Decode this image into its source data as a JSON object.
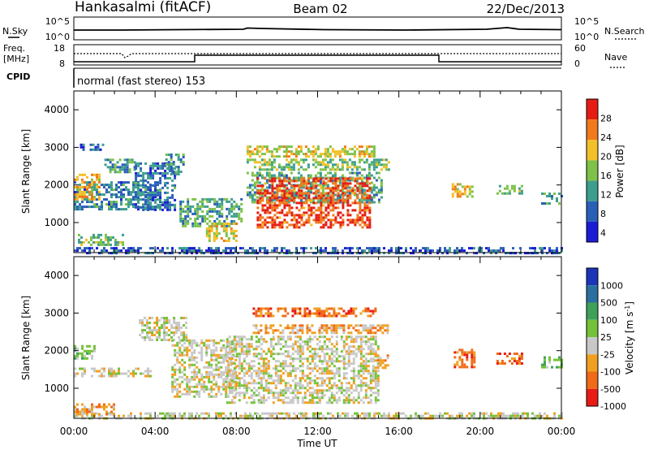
{
  "header": {
    "station": "Hankasalmi (fitACF)",
    "beam": "Beam 02",
    "date": "22/Dec/2013"
  },
  "top_panels": {
    "nsky_label": "N.Sky",
    "nsky_top_tick": "10^5",
    "nsky_bottom_tick": "10^0",
    "nsearch_label": "N.Search",
    "nsearch_top_tick": "10^5",
    "nsearch_bottom_tick": "10^0",
    "freq_label": "Freq.",
    "freq_unit": "[MHz]",
    "freq_top_tick": "18",
    "freq_bottom_tick": "8",
    "nave_label": "Nave",
    "nave_top_tick": "60",
    "nave_bottom_tick": "0",
    "cpid_label": "CPID",
    "cpid_text": "normal (fast stereo) 153"
  },
  "chart_data": [
    {
      "type": "heatmap",
      "title": "",
      "ylabel": "Slant Range [km]",
      "xlabel": "",
      "ylim": [
        200,
        4500
      ],
      "xlim": [
        0,
        24
      ],
      "yticks": [
        "4000",
        "3000",
        "2000",
        "1000"
      ],
      "colorbar": {
        "label": "Power [dB]",
        "ticks": [
          "28",
          "24",
          "20",
          "16",
          "12",
          "8",
          "4"
        ],
        "colors": [
          "#1b1bd6",
          "#2a5fb8",
          "#3e9e8e",
          "#7ec24a",
          "#f2c029",
          "#f07a1c",
          "#e61c14"
        ],
        "range": [
          0,
          30
        ]
      },
      "regions": [
        {
          "t0": 0.0,
          "t1": 24.0,
          "r0": 220,
          "r1": 350,
          "level": 6
        },
        {
          "t0": 0.0,
          "t1": 4.2,
          "r0": 1350,
          "r1": 2100,
          "level": 9
        },
        {
          "t0": 0.0,
          "t1": 1.2,
          "r0": 1650,
          "r1": 2300,
          "level": 20
        },
        {
          "t0": 1.5,
          "t1": 3.0,
          "r0": 2350,
          "r1": 2700,
          "level": 10
        },
        {
          "t0": 3.0,
          "t1": 5.0,
          "r0": 1350,
          "r1": 2600,
          "level": 8
        },
        {
          "t0": 0.2,
          "t1": 2.4,
          "r0": 380,
          "r1": 700,
          "level": 14
        },
        {
          "t0": 4.5,
          "t1": 5.4,
          "r0": 2300,
          "r1": 2900,
          "level": 10
        },
        {
          "t0": 5.2,
          "t1": 8.2,
          "r0": 900,
          "r1": 1650,
          "level": 12
        },
        {
          "t0": 6.5,
          "t1": 8.0,
          "r0": 500,
          "r1": 1000,
          "level": 18
        },
        {
          "t0": 8.5,
          "t1": 15.2,
          "r0": 1550,
          "r1": 2350,
          "level": 12
        },
        {
          "t0": 8.5,
          "t1": 14.8,
          "r0": 2750,
          "r1": 3050,
          "level": 18
        },
        {
          "t0": 8.5,
          "t1": 15.5,
          "r0": 2400,
          "r1": 2700,
          "level": 14
        },
        {
          "t0": 9.0,
          "t1": 14.6,
          "r0": 850,
          "r1": 2200,
          "level": 26
        },
        {
          "t0": 18.6,
          "t1": 19.6,
          "r0": 1700,
          "r1": 2050,
          "level": 20
        },
        {
          "t0": 20.8,
          "t1": 22.0,
          "r0": 1750,
          "r1": 2000,
          "level": 14
        },
        {
          "t0": 23.0,
          "t1": 24.0,
          "r0": 1500,
          "r1": 1800,
          "level": 10
        },
        {
          "t0": 0.3,
          "t1": 1.4,
          "r0": 2950,
          "r1": 3100,
          "level": 7
        }
      ]
    },
    {
      "type": "heatmap",
      "title": "",
      "ylabel": "Slant Range [km]",
      "xlabel": "Time UT",
      "ylim": [
        200,
        4500
      ],
      "xlim": [
        0,
        24
      ],
      "xticks": [
        "00:00",
        "04:00",
        "08:00",
        "12:00",
        "16:00",
        "20:00",
        "00:00"
      ],
      "yticks": [
        "4000",
        "3000",
        "2000",
        "1000"
      ],
      "colorbar": {
        "label": "Velocity [m s^-1]",
        "ticks": [
          "1000",
          "500",
          "100",
          "25",
          "-25",
          "-100",
          "-500",
          "-1000"
        ],
        "colors": [
          "#1a35b8",
          "#2a6fa0",
          "#3fa05a",
          "#74c23a",
          "#c8c8c8",
          "#f0a020",
          "#f06a18",
          "#e81c14"
        ]
      },
      "regions": [
        {
          "t0": 0.0,
          "t1": 24.0,
          "r0": 220,
          "r1": 360,
          "level": 4
        },
        {
          "t0": 0.0,
          "t1": 3.8,
          "r0": 1300,
          "r1": 1550,
          "level": 4
        },
        {
          "t0": 0.0,
          "t1": 1.0,
          "r0": 1800,
          "r1": 2150,
          "level": 3
        },
        {
          "t0": 3.2,
          "t1": 5.5,
          "r0": 2300,
          "r1": 2900,
          "level": 4
        },
        {
          "t0": 4.8,
          "t1": 8.0,
          "r0": 800,
          "r1": 2300,
          "level": 4
        },
        {
          "t0": 7.5,
          "t1": 15.0,
          "r0": 600,
          "r1": 2400,
          "level": 4
        },
        {
          "t0": 8.8,
          "t1": 14.8,
          "r0": 2900,
          "r1": 3150,
          "level": 6
        },
        {
          "t0": 8.8,
          "t1": 15.5,
          "r0": 2500,
          "r1": 2700,
          "level": 5
        },
        {
          "t0": 14.8,
          "t1": 15.5,
          "r0": 1550,
          "r1": 1900,
          "level": 5
        },
        {
          "t0": 18.7,
          "t1": 19.7,
          "r0": 1550,
          "r1": 2050,
          "level": 6
        },
        {
          "t0": 20.8,
          "t1": 22.0,
          "r0": 1650,
          "r1": 1950,
          "level": 6
        },
        {
          "t0": 0.0,
          "t1": 2.0,
          "r0": 320,
          "r1": 600,
          "level": 5
        },
        {
          "t0": 23.0,
          "t1": 24.0,
          "r0": 1550,
          "r1": 1850,
          "level": 3
        }
      ]
    }
  ]
}
